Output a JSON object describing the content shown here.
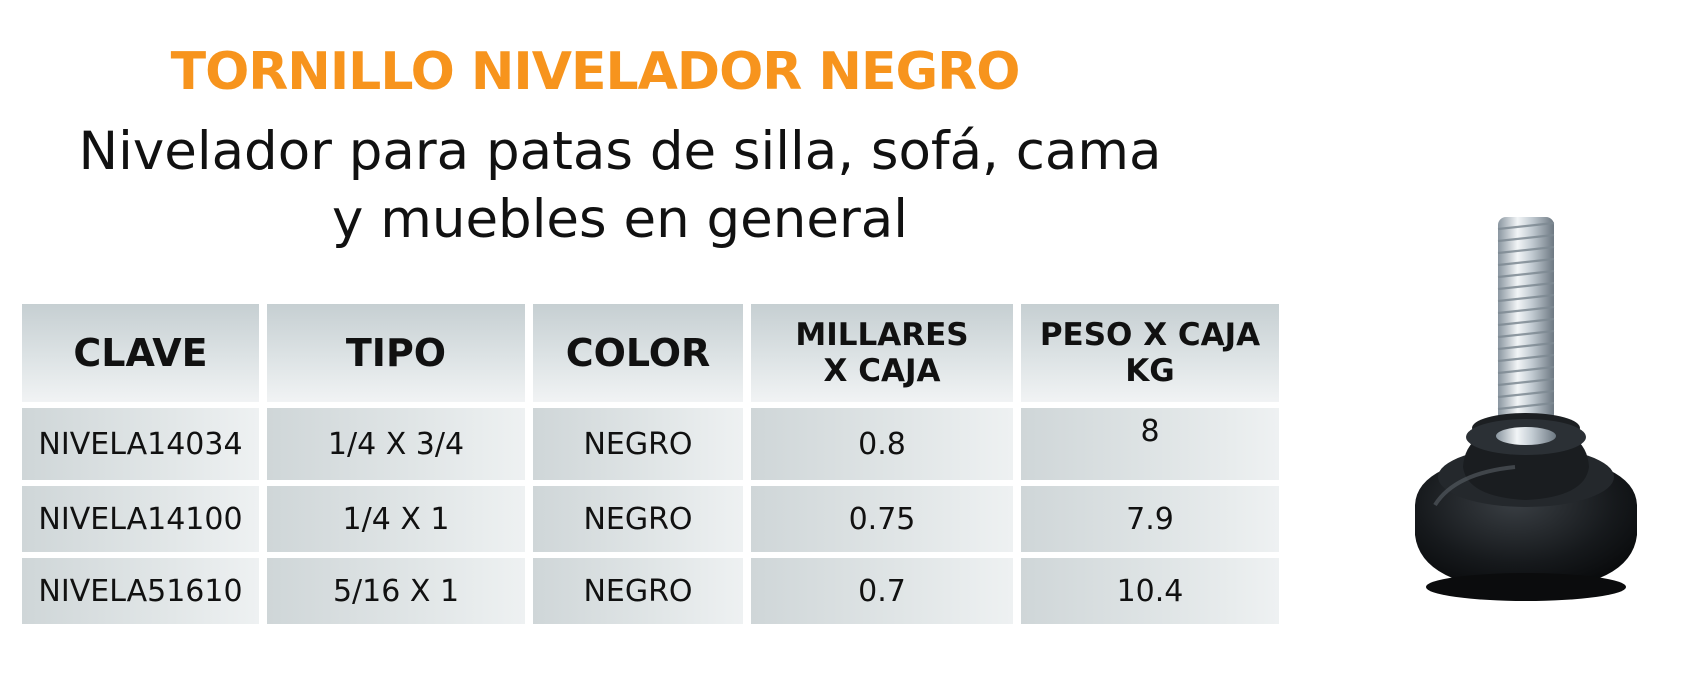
{
  "header": {
    "title": "TORNILLO NIVELADOR NEGRO",
    "subtitle_line1": "Nivelador para patas de silla, sofá, cama",
    "subtitle_line2": "y muebles en general"
  },
  "table": {
    "headers": [
      {
        "line1": "CLAVE",
        "line2": ""
      },
      {
        "line1": "TIPO",
        "line2": ""
      },
      {
        "line1": "COLOR",
        "line2": ""
      },
      {
        "line1": "MILLARES",
        "line2": "X CAJA"
      },
      {
        "line1": "PESO X CAJA",
        "line2": "KG"
      }
    ],
    "rows": [
      [
        "NIVELA14034",
        "1/4 X 3/4",
        "NEGRO",
        "0.8",
        "8"
      ],
      [
        "NIVELA14100",
        "1/4 X 1",
        "NEGRO",
        "0.75",
        "7.9"
      ],
      [
        "NIVELA51610",
        "5/16 X 1",
        "NEGRO",
        "0.7",
        "10.4"
      ]
    ]
  },
  "colors": {
    "accent": "#f7941d",
    "text": "#111111",
    "cell": "#d5dcde"
  },
  "image": {
    "icon": "leveling-screw-product-photo"
  }
}
